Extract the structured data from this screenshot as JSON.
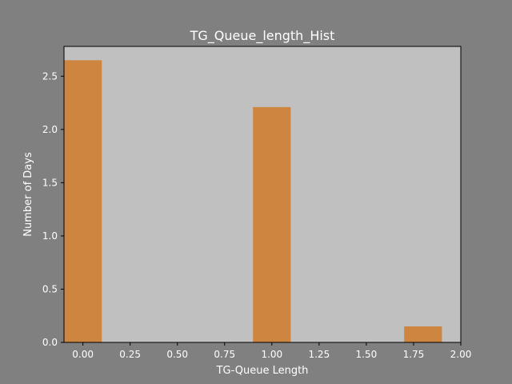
{
  "chart_data": {
    "type": "bar",
    "title": "TG_Queue_length_Hist",
    "xlabel": "TG-Queue Length",
    "ylabel": "Number of Days",
    "xlim": [
      -0.1,
      2.0
    ],
    "ylim": [
      0,
      2.78
    ],
    "x_ticks": [
      "0.00",
      "0.25",
      "0.50",
      "0.75",
      "1.00",
      "1.25",
      "1.50",
      "1.75",
      "2.00"
    ],
    "x_tick_values": [
      0,
      0.25,
      0.5,
      0.75,
      1.0,
      1.25,
      1.5,
      1.75,
      2.0
    ],
    "y_ticks": [
      "0.0",
      "0.5",
      "1.0",
      "1.5",
      "2.0",
      "2.5"
    ],
    "y_tick_values": [
      0,
      0.5,
      1.0,
      1.5,
      2.0,
      2.5
    ],
    "bars": [
      {
        "x": 0.0,
        "width": 0.2,
        "value": 2.65
      },
      {
        "x": 1.0,
        "width": 0.2,
        "value": 2.21
      },
      {
        "x": 1.8,
        "width": 0.2,
        "value": 0.15
      }
    ],
    "grid": false,
    "colors": {
      "figure_bg": "#808080",
      "axes_bg": "#c0c0c0",
      "bar": "#cd853f",
      "text": "#ffffff"
    }
  }
}
